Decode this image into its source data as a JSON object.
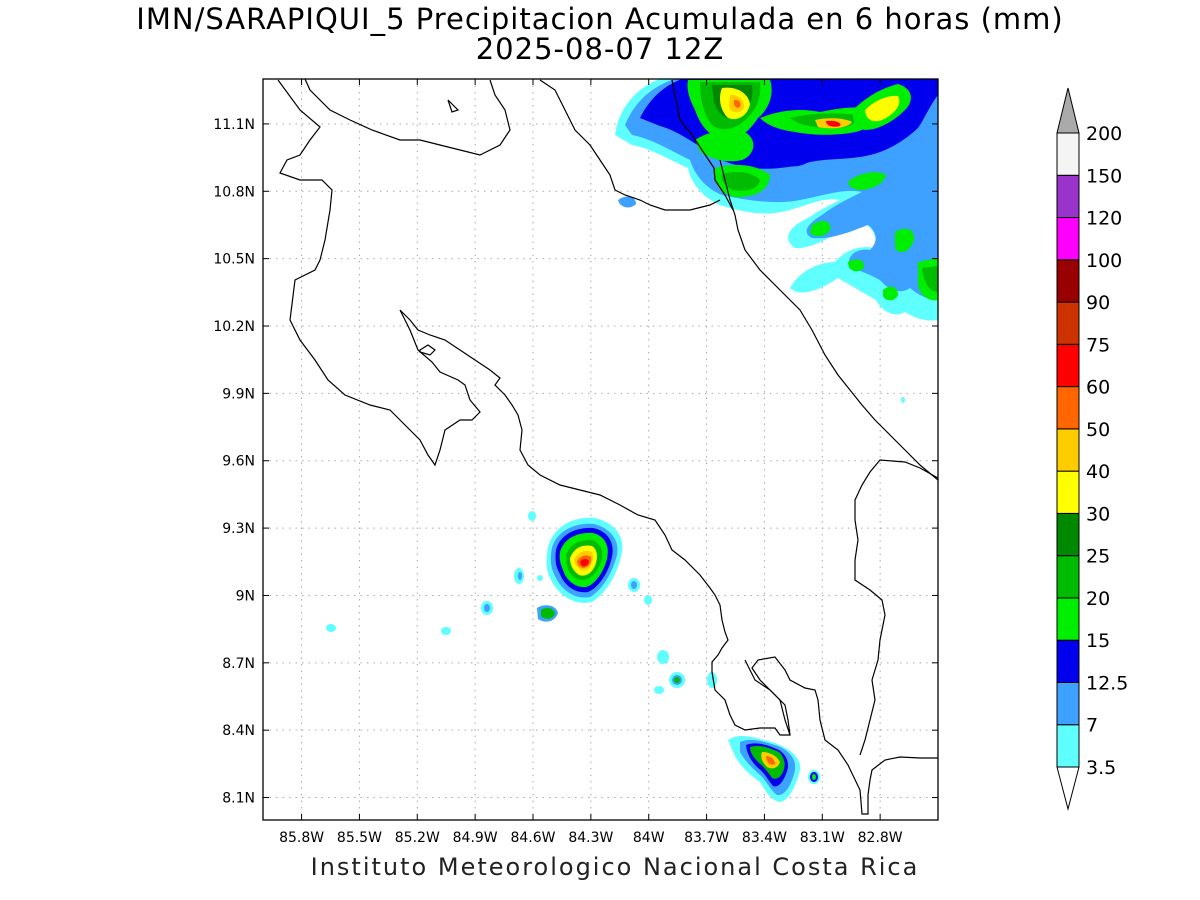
{
  "title": "IMN/SARAPIQUI_5 Precipitacion Acumulada en 6 horas (mm)",
  "subtitle": "2025-08-07 12Z",
  "footer": "Instituto Meteorologico Nacional Costa Rica",
  "map": {
    "lon_range": [
      -86.0,
      -82.5
    ],
    "lat_range": [
      8.0,
      11.3
    ],
    "lon_ticks": [
      "85.8W",
      "85.5W",
      "85.2W",
      "84.9W",
      "84.6W",
      "84.3W",
      "84W",
      "83.7W",
      "83.4W",
      "83.1W",
      "82.8W"
    ],
    "lat_ticks": [
      "11.1N",
      "10.8N",
      "10.5N",
      "10.2N",
      "9.9N",
      "9.6N",
      "9.3N",
      "9N",
      "8.7N",
      "8.4N",
      "8.1N"
    ],
    "grid": true
  },
  "colorbar": {
    "levels": [
      "3.5",
      "7",
      "12.5",
      "15",
      "20",
      "25",
      "30",
      "40",
      "50",
      "60",
      "75",
      "90",
      "100",
      "120",
      "150",
      "200"
    ],
    "colors": [
      "#5fffff",
      "#3ea0ff",
      "#0000ee",
      "#00ee00",
      "#00bb00",
      "#008800",
      "#ffff00",
      "#ffcc00",
      "#ff6600",
      "#ff0000",
      "#cc3300",
      "#990000",
      "#ff00ff",
      "#9933cc",
      "#f4f4f4",
      "#aaaaaa"
    ]
  }
}
